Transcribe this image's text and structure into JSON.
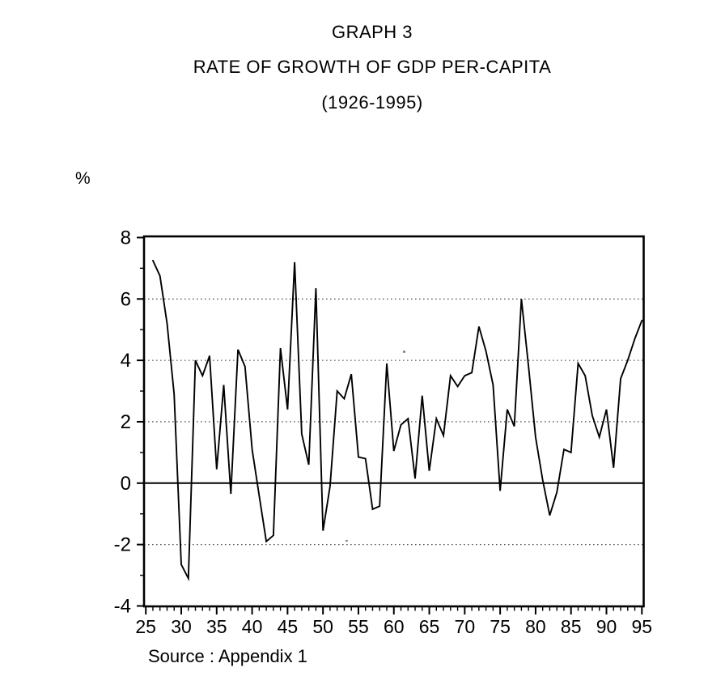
{
  "page": {
    "title_line1": "GRAPH 3",
    "title_line2": "RATE OF GROWTH OF GDP PER-CAPITA",
    "title_line3": "(1926-1995)",
    "y_axis_unit": "%",
    "source": "Source : Appendix 1"
  },
  "chart_data": {
    "type": "line",
    "title": "GRAPH 3 — RATE OF GROWTH OF GDP PER-CAPITA (1926-1995)",
    "xlabel": "",
    "ylabel": "%",
    "ylim": [
      -4,
      8
    ],
    "xlim": [
      1925,
      1995.5
    ],
    "grid": "dotted horizontal at 6, 4, 2, -2; solid line at 0",
    "legend_position": "none",
    "line_color": "#000000",
    "y_ticks": [
      8,
      6,
      4,
      2,
      0,
      -2,
      -4
    ],
    "y_tick_labels": [
      "8",
      "6",
      "4",
      "2",
      "0",
      "-2",
      "-4"
    ],
    "y_minor_ticks": [
      7,
      5,
      3,
      1,
      -1,
      -3
    ],
    "grid_dotted_at": [
      6,
      4,
      2,
      -2
    ],
    "zero_line_at": 0,
    "x_major_ticks": [
      1925,
      1930,
      1935,
      1940,
      1945,
      1950,
      1955,
      1960,
      1965,
      1970,
      1975,
      1980,
      1985,
      1990,
      1995
    ],
    "x_tick_labels": [
      "25",
      "30",
      "35",
      "40",
      "45",
      "50",
      "55",
      "60",
      "65",
      "70",
      "75",
      "80",
      "85",
      "90",
      "95"
    ],
    "x": [
      1926,
      1927,
      1928,
      1929,
      1930,
      1931,
      1932,
      1933,
      1934,
      1935,
      1936,
      1937,
      1938,
      1939,
      1940,
      1941,
      1942,
      1943,
      1944,
      1945,
      1946,
      1947,
      1948,
      1949,
      1950,
      1951,
      1952,
      1953,
      1954,
      1955,
      1956,
      1957,
      1958,
      1959,
      1960,
      1961,
      1962,
      1963,
      1964,
      1965,
      1966,
      1967,
      1968,
      1969,
      1970,
      1971,
      1972,
      1973,
      1974,
      1975,
      1976,
      1977,
      1978,
      1979,
      1980,
      1981,
      1982,
      1983,
      1984,
      1985,
      1986,
      1987,
      1988,
      1989,
      1990,
      1991,
      1992,
      1993,
      1994,
      1995
    ],
    "values": [
      7.25,
      6.75,
      5.2,
      2.9,
      -2.65,
      -3.1,
      4.0,
      3.5,
      4.15,
      0.45,
      3.2,
      -0.35,
      4.35,
      3.8,
      1.1,
      -0.4,
      -1.9,
      -1.7,
      4.4,
      2.4,
      7.2,
      1.6,
      0.6,
      6.35,
      -1.55,
      -0.1,
      3.0,
      2.75,
      3.55,
      0.85,
      0.8,
      -0.85,
      -0.75,
      3.9,
      1.05,
      1.9,
      2.1,
      0.15,
      2.85,
      0.4,
      2.1,
      1.55,
      3.5,
      3.15,
      3.5,
      3.6,
      5.1,
      4.3,
      3.2,
      -0.25,
      2.4,
      1.85,
      6.0,
      3.8,
      1.5,
      0.1,
      -1.05,
      -0.3,
      1.1,
      1.0,
      3.9,
      3.5,
      2.2,
      1.5,
      2.4,
      0.5,
      3.4,
      4.0,
      4.7,
      5.3
    ]
  }
}
